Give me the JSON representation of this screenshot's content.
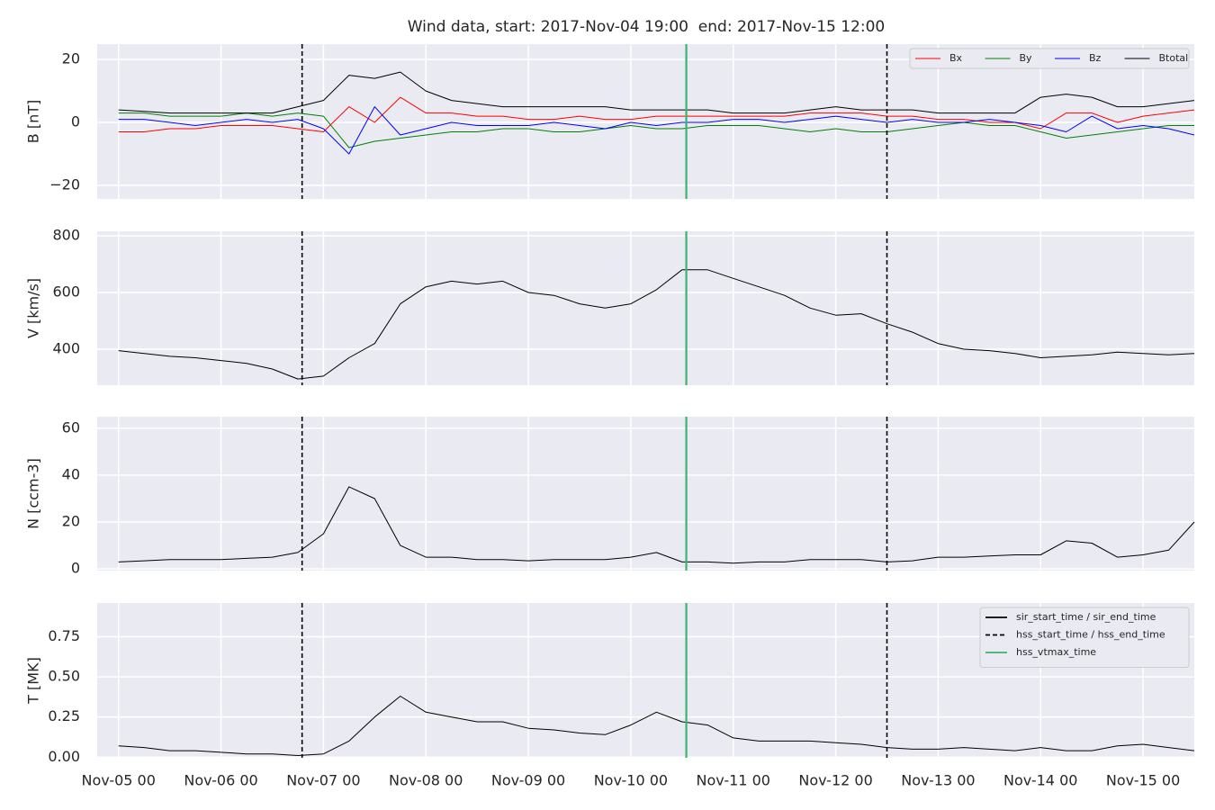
{
  "title": "Wind data, start: 2017-Nov-04 19:00  end: 2017-Nov-15 12:00",
  "chart_data": [
    {
      "type": "line",
      "ylabel": "B [nT]",
      "xlim": [
        "2017-11-04T19:00",
        "2017-11-15T12:00"
      ],
      "ylim": [
        -24.3,
        24.9
      ],
      "yticks": [
        {
          "value": -20,
          "label": "−20"
        },
        0,
        20
      ],
      "grid": true,
      "legend": "upper right",
      "legend_layout": "row",
      "x": [
        "2017-11-05T00:00",
        "2017-11-05T06:00",
        "2017-11-05T12:00",
        "2017-11-05T18:00",
        "2017-11-06T00:00",
        "2017-11-06T06:00",
        "2017-11-06T12:00",
        "2017-11-06T18:00",
        "2017-11-07T00:00",
        "2017-11-07T06:00",
        "2017-11-07T12:00",
        "2017-11-07T18:00",
        "2017-11-08T00:00",
        "2017-11-08T06:00",
        "2017-11-08T12:00",
        "2017-11-08T18:00",
        "2017-11-09T00:00",
        "2017-11-09T06:00",
        "2017-11-09T12:00",
        "2017-11-09T18:00",
        "2017-11-10T00:00",
        "2017-11-10T06:00",
        "2017-11-10T12:00",
        "2017-11-10T18:00",
        "2017-11-11T00:00",
        "2017-11-11T06:00",
        "2017-11-11T12:00",
        "2017-11-11T18:00",
        "2017-11-12T00:00",
        "2017-11-12T06:00",
        "2017-11-12T12:00",
        "2017-11-12T18:00",
        "2017-11-13T00:00",
        "2017-11-13T06:00",
        "2017-11-13T12:00",
        "2017-11-13T18:00",
        "2017-11-14T00:00",
        "2017-11-14T06:00",
        "2017-11-14T12:00",
        "2017-11-14T18:00",
        "2017-11-15T00:00",
        "2017-11-15T06:00",
        "2017-11-15T12:00"
      ],
      "series": [
        {
          "name": "Bx",
          "color": "#ff0000",
          "values": [
            -3,
            -3,
            -2,
            -2,
            -1,
            -1,
            -1,
            -2,
            -3,
            5,
            0,
            8,
            3,
            3,
            2,
            2,
            1,
            1,
            2,
            1,
            1,
            2,
            2,
            2,
            2,
            2,
            2,
            3,
            3,
            3,
            2,
            2,
            1,
            1,
            0,
            0,
            -2,
            3,
            3,
            0,
            2,
            3,
            4
          ]
        },
        {
          "name": "By",
          "color": "#008000",
          "values": [
            3,
            3,
            2,
            2,
            2,
            3,
            2,
            3,
            2,
            -8,
            -6,
            -5,
            -4,
            -3,
            -3,
            -2,
            -2,
            -3,
            -3,
            -2,
            -1,
            -2,
            -2,
            -1,
            -1,
            -1,
            -2,
            -3,
            -2,
            -3,
            -3,
            -2,
            -1,
            0,
            -1,
            -1,
            -3,
            -5,
            -4,
            -3,
            -2,
            -1,
            -1
          ]
        },
        {
          "name": "Bz",
          "color": "#0000ff",
          "values": [
            1,
            1,
            0,
            -1,
            0,
            1,
            0,
            1,
            -2,
            -10,
            5,
            -4,
            -2,
            0,
            -1,
            -1,
            -1,
            0,
            -1,
            -2,
            0,
            -1,
            0,
            0,
            1,
            1,
            0,
            1,
            2,
            1,
            0,
            1,
            0,
            0,
            1,
            0,
            -1,
            -3,
            2,
            -2,
            -1,
            -2,
            -4
          ]
        },
        {
          "name": "Btotal",
          "color": "#000000",
          "values": [
            4,
            3.5,
            3,
            3,
            3,
            3,
            3,
            5,
            7,
            15,
            14,
            16,
            10,
            7,
            6,
            5,
            5,
            5,
            5,
            5,
            4,
            4,
            4,
            4,
            3,
            3,
            3,
            4,
            5,
            4,
            4,
            4,
            3,
            3,
            3,
            3,
            8,
            9,
            8,
            5,
            5,
            6,
            7
          ]
        }
      ]
    },
    {
      "type": "line",
      "ylabel": "V [km/s]",
      "xlim": [
        "2017-11-04T19:00",
        "2017-11-15T12:00"
      ],
      "ylim": [
        273,
        816
      ],
      "yticks": [
        400,
        600,
        800
      ],
      "grid": true,
      "x": [
        "2017-11-05T00:00",
        "2017-11-05T06:00",
        "2017-11-05T12:00",
        "2017-11-05T18:00",
        "2017-11-06T00:00",
        "2017-11-06T06:00",
        "2017-11-06T12:00",
        "2017-11-06T18:00",
        "2017-11-07T00:00",
        "2017-11-07T06:00",
        "2017-11-07T12:00",
        "2017-11-07T18:00",
        "2017-11-08T00:00",
        "2017-11-08T06:00",
        "2017-11-08T12:00",
        "2017-11-08T18:00",
        "2017-11-09T00:00",
        "2017-11-09T06:00",
        "2017-11-09T12:00",
        "2017-11-09T18:00",
        "2017-11-10T00:00",
        "2017-11-10T06:00",
        "2017-11-10T12:00",
        "2017-11-10T18:00",
        "2017-11-11T00:00",
        "2017-11-11T06:00",
        "2017-11-11T12:00",
        "2017-11-11T18:00",
        "2017-11-12T00:00",
        "2017-11-12T06:00",
        "2017-11-12T12:00",
        "2017-11-12T18:00",
        "2017-11-13T00:00",
        "2017-11-13T06:00",
        "2017-11-13T12:00",
        "2017-11-13T18:00",
        "2017-11-14T00:00",
        "2017-11-14T06:00",
        "2017-11-14T12:00",
        "2017-11-14T18:00",
        "2017-11-15T00:00",
        "2017-11-15T06:00",
        "2017-11-15T12:00"
      ],
      "series": [
        {
          "color": "#000000",
          "values": [
            395,
            385,
            375,
            370,
            360,
            350,
            330,
            295,
            305,
            370,
            420,
            560,
            620,
            640,
            630,
            640,
            600,
            590,
            560,
            545,
            560,
            610,
            680,
            680,
            650,
            620,
            590,
            545,
            520,
            525,
            490,
            460,
            420,
            400,
            395,
            385,
            370,
            375,
            380,
            390,
            385,
            380,
            385
          ]
        }
      ]
    },
    {
      "type": "line",
      "ylabel": "N [ccm-3]",
      "xlim": [
        "2017-11-04T19:00",
        "2017-11-15T12:00"
      ],
      "ylim": [
        -0.7,
        64.9
      ],
      "yticks": [
        0,
        20,
        40,
        60
      ],
      "grid": true,
      "x": [
        "2017-11-05T00:00",
        "2017-11-05T06:00",
        "2017-11-05T12:00",
        "2017-11-05T18:00",
        "2017-11-06T00:00",
        "2017-11-06T06:00",
        "2017-11-06T12:00",
        "2017-11-06T18:00",
        "2017-11-07T00:00",
        "2017-11-07T06:00",
        "2017-11-07T12:00",
        "2017-11-07T18:00",
        "2017-11-08T00:00",
        "2017-11-08T06:00",
        "2017-11-08T12:00",
        "2017-11-08T18:00",
        "2017-11-09T00:00",
        "2017-11-09T06:00",
        "2017-11-09T12:00",
        "2017-11-09T18:00",
        "2017-11-10T00:00",
        "2017-11-10T06:00",
        "2017-11-10T12:00",
        "2017-11-10T18:00",
        "2017-11-11T00:00",
        "2017-11-11T06:00",
        "2017-11-11T12:00",
        "2017-11-11T18:00",
        "2017-11-12T00:00",
        "2017-11-12T06:00",
        "2017-11-12T12:00",
        "2017-11-12T18:00",
        "2017-11-13T00:00",
        "2017-11-13T06:00",
        "2017-11-13T12:00",
        "2017-11-13T18:00",
        "2017-11-14T00:00",
        "2017-11-14T06:00",
        "2017-11-14T12:00",
        "2017-11-14T18:00",
        "2017-11-15T00:00",
        "2017-11-15T06:00",
        "2017-11-15T12:00"
      ],
      "series": [
        {
          "color": "#000000",
          "values": [
            3,
            3.5,
            4,
            4,
            4,
            4.5,
            5,
            7,
            15,
            35,
            30,
            10,
            5,
            5,
            4,
            4,
            3.5,
            4,
            4,
            4,
            5,
            7,
            3,
            3,
            2.5,
            3,
            3,
            4,
            4,
            4,
            3,
            3.5,
            5,
            5,
            5.5,
            6,
            6,
            12,
            11,
            5,
            6,
            8,
            20
          ]
        }
      ]
    },
    {
      "type": "line",
      "ylabel": "T [MK]",
      "xlim": [
        "2017-11-04T19:00",
        "2017-11-15T12:00"
      ],
      "ylim": [
        -0.004,
        0.96
      ],
      "yticks": [
        {
          "value": 0,
          "label": "0.00"
        },
        0.25,
        {
          "value": 0.5,
          "label": "0.50"
        },
        0.75
      ],
      "grid": true,
      "legend": "upper right",
      "legend_layout": "column",
      "xticks": [
        {
          "value": "2017-11-05T00:00",
          "label": "Nov-05 00"
        },
        {
          "value": "2017-11-06T00:00",
          "label": "Nov-06 00"
        },
        {
          "value": "2017-11-07T00:00",
          "label": "Nov-07 00"
        },
        {
          "value": "2017-11-08T00:00",
          "label": "Nov-08 00"
        },
        {
          "value": "2017-11-09T00:00",
          "label": "Nov-09 00"
        },
        {
          "value": "2017-11-10T00:00",
          "label": "Nov-10 00"
        },
        {
          "value": "2017-11-11T00:00",
          "label": "Nov-11 00"
        },
        {
          "value": "2017-11-12T00:00",
          "label": "Nov-12 00"
        },
        {
          "value": "2017-11-13T00:00",
          "label": "Nov-13 00"
        },
        {
          "value": "2017-11-14T00:00",
          "label": "Nov-14 00"
        },
        {
          "value": "2017-11-15T00:00",
          "label": "Nov-15 00"
        }
      ],
      "markers": [
        {
          "name": "sir_start_time / sir_end_time",
          "color": "#000000",
          "style": "solid",
          "times": []
        },
        {
          "name": "hss_start_time / hss_end_time",
          "color": "#000000",
          "style": "dashed",
          "times": [
            "2017-11-06T19:00",
            "2017-11-12T12:00"
          ]
        },
        {
          "name": "hss_vtmax_time",
          "color": "#3cb371",
          "style": "solid",
          "times": [
            "2017-11-10T13:00"
          ]
        }
      ],
      "x": [
        "2017-11-05T00:00",
        "2017-11-05T06:00",
        "2017-11-05T12:00",
        "2017-11-05T18:00",
        "2017-11-06T00:00",
        "2017-11-06T06:00",
        "2017-11-06T12:00",
        "2017-11-06T18:00",
        "2017-11-07T00:00",
        "2017-11-07T06:00",
        "2017-11-07T12:00",
        "2017-11-07T18:00",
        "2017-11-08T00:00",
        "2017-11-08T06:00",
        "2017-11-08T12:00",
        "2017-11-08T18:00",
        "2017-11-09T00:00",
        "2017-11-09T06:00",
        "2017-11-09T12:00",
        "2017-11-09T18:00",
        "2017-11-10T00:00",
        "2017-11-10T06:00",
        "2017-11-10T12:00",
        "2017-11-10T18:00",
        "2017-11-11T00:00",
        "2017-11-11T06:00",
        "2017-11-11T12:00",
        "2017-11-11T18:00",
        "2017-11-12T00:00",
        "2017-11-12T06:00",
        "2017-11-12T12:00",
        "2017-11-12T18:00",
        "2017-11-13T00:00",
        "2017-11-13T06:00",
        "2017-11-13T12:00",
        "2017-11-13T18:00",
        "2017-11-14T00:00",
        "2017-11-14T06:00",
        "2017-11-14T12:00",
        "2017-11-14T18:00",
        "2017-11-15T00:00",
        "2017-11-15T06:00",
        "2017-11-15T12:00"
      ],
      "series": [
        {
          "color": "#000000",
          "values": [
            0.07,
            0.06,
            0.04,
            0.04,
            0.03,
            0.02,
            0.02,
            0.01,
            0.02,
            0.1,
            0.25,
            0.38,
            0.28,
            0.25,
            0.22,
            0.22,
            0.18,
            0.17,
            0.15,
            0.14,
            0.2,
            0.28,
            0.22,
            0.2,
            0.12,
            0.1,
            0.1,
            0.1,
            0.09,
            0.08,
            0.06,
            0.05,
            0.05,
            0.06,
            0.05,
            0.04,
            0.06,
            0.04,
            0.04,
            0.07,
            0.08,
            0.06,
            0.04
          ]
        }
      ]
    }
  ]
}
